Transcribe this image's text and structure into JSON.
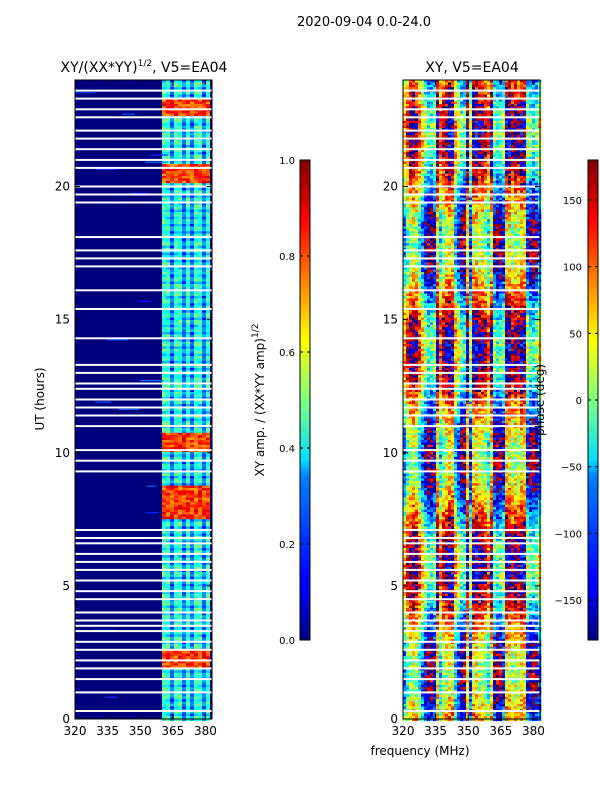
{
  "suptitle": "2020-09-04 0.0-24.0",
  "colors": {
    "background": "#ffffff",
    "plot_background": "#00007f",
    "axis": "#000000",
    "gap_rows": "#ffffff"
  },
  "colormap": "jet",
  "chart_data": [
    {
      "type": "heatmap",
      "title_prefix": "XY/(XX*YY)",
      "title_exponent": "1/2",
      "title_suffix": ", V5=EA04",
      "xlabel": "",
      "ylabel": "UT (hours)",
      "xlim": [
        320,
        383
      ],
      "ylim": [
        0,
        24
      ],
      "xticks": [
        320,
        335,
        350,
        365,
        380
      ],
      "yticks": [
        0,
        5,
        10,
        15,
        20
      ],
      "grid": false,
      "value_key": "normalized XY amplitude",
      "background_value": 0.05,
      "active_band_mhz": [
        360,
        381
      ],
      "vertical_stripes_mhz": [
        364,
        370,
        373,
        378
      ],
      "hot_rows_hours": [
        23.0,
        20.5,
        10.4,
        8.5,
        7.9,
        2.3
      ],
      "gap_rows_hours": [
        0.3,
        1.0,
        1.5,
        1.9,
        2.2,
        2.6,
        2.9,
        3.3,
        3.5,
        3.7,
        4.0,
        4.5,
        4.8,
        5.2,
        5.6,
        5.9,
        6.2,
        6.6,
        6.8,
        7.1,
        9.3,
        9.7,
        10.1,
        11.0,
        11.4,
        11.7,
        12.0,
        12.4,
        12.6,
        13.0,
        13.3,
        14.3,
        15.4,
        16.1,
        17.0,
        17.3,
        17.6,
        18.1,
        19.4,
        19.7,
        20.0,
        20.7,
        21.0,
        21.4,
        21.8,
        22.1,
        22.6,
        22.9,
        23.3,
        23.6
      ]
    },
    {
      "type": "heatmap",
      "title": "XY, V5=EA04",
      "xlabel": "frequency (MHz)",
      "ylabel": "",
      "xlim": [
        320,
        383
      ],
      "ylim": [
        0,
        24
      ],
      "xticks": [
        320,
        335,
        350,
        365,
        380
      ],
      "yticks": [
        0,
        5,
        10,
        15,
        20
      ],
      "grid": false,
      "value_key": "XY phase (degrees)",
      "vertical_stripes_mhz": [
        335,
        341,
        349,
        352,
        360,
        368,
        375
      ],
      "gap_rows_hours": [
        0.3,
        1.0,
        1.5,
        1.9,
        2.2,
        2.6,
        2.9,
        3.3,
        3.5,
        3.7,
        4.0,
        4.5,
        4.8,
        5.2,
        5.6,
        5.9,
        6.2,
        6.6,
        6.8,
        7.1,
        9.3,
        9.7,
        10.1,
        11.0,
        11.4,
        11.7,
        12.0,
        12.4,
        12.6,
        13.0,
        13.3,
        14.3,
        15.4,
        16.1,
        17.0,
        17.3,
        17.6,
        18.1,
        19.4,
        19.7,
        20.0,
        20.7,
        21.0,
        21.4,
        21.8,
        22.1,
        22.6,
        22.9,
        23.3,
        23.6
      ]
    },
    {
      "type": "colorbar",
      "label_prefix": "XY amp. / (XX*YY amp)",
      "label_exponent": "1/2",
      "range": [
        0.0,
        1.0
      ],
      "ticks": [
        0.0,
        0.2,
        0.4,
        0.6,
        0.8,
        1.0
      ],
      "tick_labels": [
        "0.0",
        "0.2",
        "0.4",
        "0.6",
        "0.8",
        "1.0"
      ]
    },
    {
      "type": "colorbar",
      "label": "phase (deg)",
      "range": [
        -180,
        180
      ],
      "ticks": [
        -150,
        -100,
        -50,
        0,
        50,
        100,
        150
      ],
      "tick_labels": [
        "−150",
        "−100",
        "−50",
        "0",
        "50",
        "100",
        "150"
      ]
    }
  ]
}
